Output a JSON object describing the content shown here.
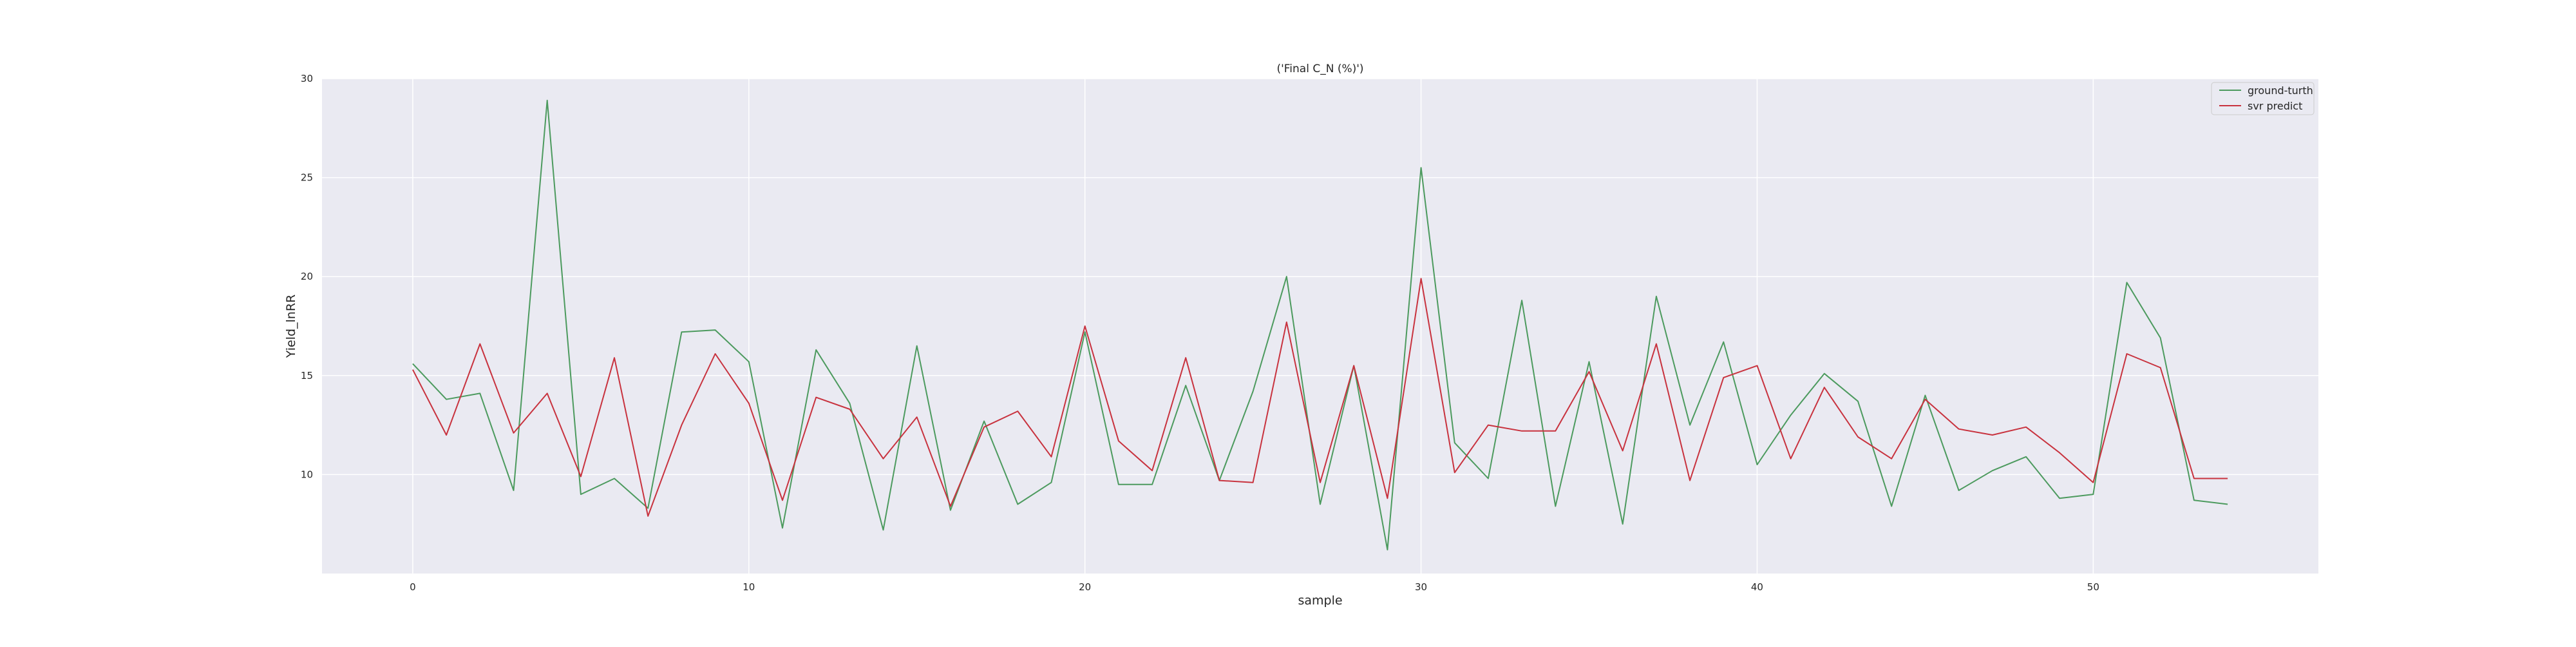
{
  "chart_data": {
    "type": "line",
    "title": "('Final C_N (%)')",
    "xlabel": "sample",
    "ylabel": "Yield_lnRR",
    "xlim": [
      -2.7,
      56.7
    ],
    "ylim": [
      5.0,
      30.0
    ],
    "xticks": [
      0,
      10,
      20,
      30,
      40,
      50
    ],
    "yticks": [
      10,
      15,
      20,
      25,
      30
    ],
    "grid": true,
    "legend_position": "top-right",
    "x": [
      0,
      1,
      2,
      3,
      4,
      5,
      6,
      7,
      8,
      9,
      10,
      11,
      12,
      13,
      14,
      15,
      16,
      17,
      18,
      19,
      20,
      21,
      22,
      23,
      24,
      25,
      26,
      27,
      28,
      29,
      30,
      31,
      32,
      33,
      34,
      35,
      36,
      37,
      38,
      39,
      40,
      41,
      42,
      43,
      44,
      45,
      46,
      47,
      48,
      49,
      50,
      51,
      52,
      53,
      54
    ],
    "series": [
      {
        "name": "ground-turth",
        "color": "#4c9a5e",
        "values": [
          15.6,
          13.8,
          14.1,
          9.2,
          28.9,
          9.0,
          9.8,
          8.3,
          17.2,
          17.3,
          15.7,
          7.3,
          16.3,
          13.6,
          7.2,
          16.5,
          8.2,
          12.7,
          8.5,
          9.6,
          17.2,
          9.5,
          9.5,
          14.5,
          9.7,
          14.2,
          20.0,
          8.5,
          15.5,
          6.2,
          25.5,
          11.6,
          9.8,
          18.8,
          8.4,
          15.7,
          7.5,
          19.0,
          12.5,
          16.7,
          10.5,
          13.0,
          15.1,
          13.7,
          8.4,
          14.0,
          9.2,
          10.2,
          10.9,
          8.8,
          9.0,
          19.7,
          16.9,
          8.7,
          8.5
        ]
      },
      {
        "name": "svr predict",
        "color": "#c8323e",
        "values": [
          15.3,
          12.0,
          16.6,
          12.1,
          14.1,
          9.9,
          15.9,
          7.9,
          12.5,
          16.1,
          13.6,
          8.7,
          13.9,
          13.3,
          10.8,
          12.9,
          8.4,
          12.4,
          13.2,
          10.9,
          17.5,
          11.7,
          10.2,
          15.9,
          9.7,
          9.6,
          17.7,
          9.6,
          15.5,
          8.8,
          19.9,
          10.1,
          12.5,
          12.2,
          12.2,
          15.2,
          11.2,
          16.6,
          9.7,
          14.9,
          15.5,
          10.8,
          14.4,
          11.9,
          10.8,
          13.8,
          12.3,
          12.0,
          12.4,
          11.1,
          9.6,
          16.1,
          15.4,
          9.8,
          9.8
        ]
      }
    ]
  }
}
